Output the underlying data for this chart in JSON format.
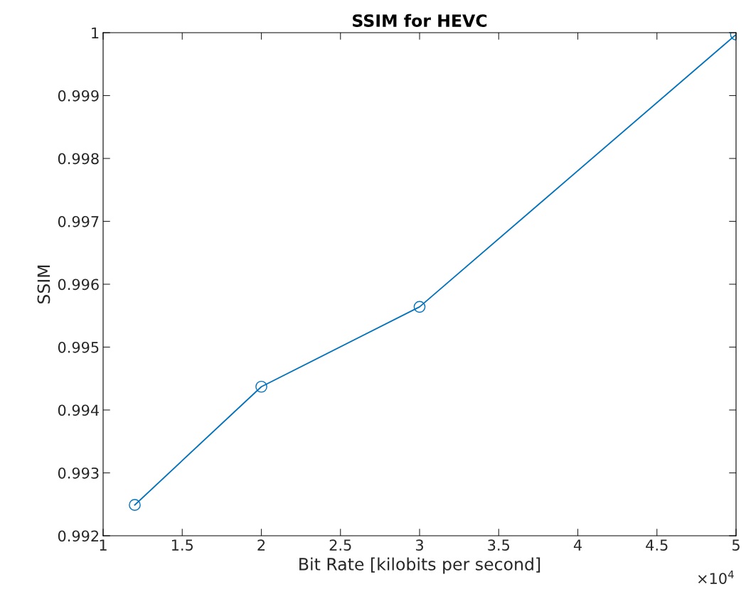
{
  "chart_data": {
    "type": "line",
    "title": "SSIM for HEVC",
    "xlabel": "Bit Rate [kilobits per second]",
    "ylabel": "SSIM",
    "x": [
      1.2,
      2,
      3,
      5
    ],
    "series": [
      {
        "color": "#0072bd",
        "values": [
          0.99249,
          0.99437,
          0.99564,
          0.99997
        ]
      }
    ],
    "xlim": [
      1,
      5
    ],
    "xticks": [
      1,
      1.5,
      2,
      2.5,
      3,
      3.5,
      4,
      4.5,
      5
    ],
    "ylim": [
      0.992,
      1
    ],
    "yticks": [
      0.992,
      0.993,
      0.994,
      0.995,
      0.996,
      0.997,
      0.998,
      0.999,
      1
    ],
    "annotations": [
      "×10$^{4}$"
    ],
    "marker": "circle",
    "line_style": "solid",
    "grid": false,
    "legend": false
  }
}
